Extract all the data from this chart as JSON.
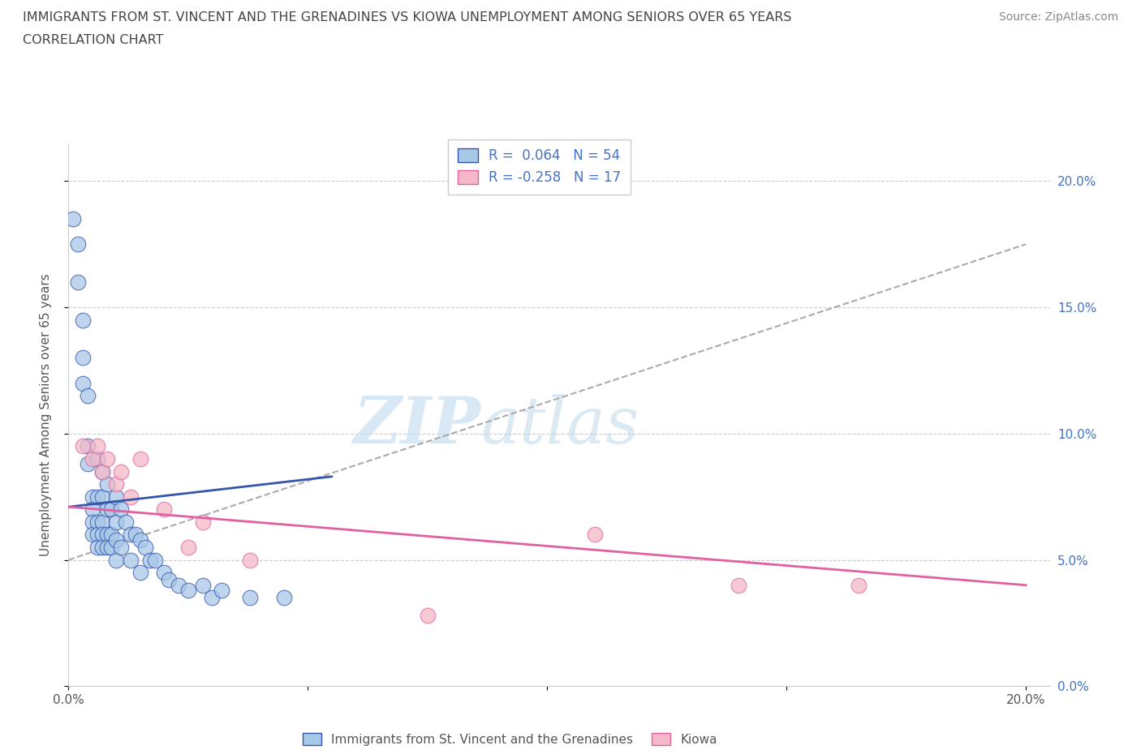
{
  "title_line1": "IMMIGRANTS FROM ST. VINCENT AND THE GRENADINES VS KIOWA UNEMPLOYMENT AMONG SENIORS OVER 65 YEARS",
  "title_line2": "CORRELATION CHART",
  "source_text": "Source: ZipAtlas.com",
  "ylabel": "Unemployment Among Seniors over 65 years",
  "watermark_zip": "ZIP",
  "watermark_atlas": "atlas",
  "xlim": [
    0.0,
    0.205
  ],
  "ylim": [
    0.0,
    0.215
  ],
  "yticks": [
    0.0,
    0.05,
    0.1,
    0.15,
    0.2
  ],
  "ytick_labels": [
    "0.0%",
    "5.0%",
    "10.0%",
    "15.0%",
    "20.0%"
  ],
  "xticks": [
    0.0,
    0.05,
    0.1,
    0.15,
    0.2
  ],
  "xtick_labels": [
    "0.0%",
    "",
    "",
    "",
    "20.0%"
  ],
  "color_blue": "#a8c8e8",
  "color_pink": "#f4b8c8",
  "trendline_blue_color": "#3355aa",
  "trendline_pink_color": "#e060a0",
  "trendline_gray_color": "#aaaaaa",
  "legend_label_blue": "Immigrants from St. Vincent and the Grenadines",
  "legend_label_pink": "Kiowa",
  "blue_scatter_x": [
    0.001,
    0.002,
    0.002,
    0.003,
    0.003,
    0.003,
    0.004,
    0.004,
    0.004,
    0.005,
    0.005,
    0.005,
    0.005,
    0.006,
    0.006,
    0.006,
    0.006,
    0.006,
    0.007,
    0.007,
    0.007,
    0.007,
    0.007,
    0.008,
    0.008,
    0.008,
    0.008,
    0.009,
    0.009,
    0.009,
    0.01,
    0.01,
    0.01,
    0.01,
    0.011,
    0.011,
    0.012,
    0.013,
    0.013,
    0.014,
    0.015,
    0.015,
    0.016,
    0.017,
    0.018,
    0.02,
    0.021,
    0.023,
    0.025,
    0.028,
    0.03,
    0.032,
    0.038,
    0.045
  ],
  "blue_scatter_y": [
    0.185,
    0.175,
    0.16,
    0.145,
    0.13,
    0.12,
    0.115,
    0.095,
    0.088,
    0.075,
    0.07,
    0.065,
    0.06,
    0.09,
    0.075,
    0.065,
    0.06,
    0.055,
    0.085,
    0.075,
    0.065,
    0.06,
    0.055,
    0.08,
    0.07,
    0.06,
    0.055,
    0.07,
    0.06,
    0.055,
    0.075,
    0.065,
    0.058,
    0.05,
    0.07,
    0.055,
    0.065,
    0.06,
    0.05,
    0.06,
    0.058,
    0.045,
    0.055,
    0.05,
    0.05,
    0.045,
    0.042,
    0.04,
    0.038,
    0.04,
    0.035,
    0.038,
    0.035,
    0.035
  ],
  "pink_scatter_x": [
    0.003,
    0.005,
    0.006,
    0.007,
    0.008,
    0.01,
    0.011,
    0.013,
    0.015,
    0.02,
    0.025,
    0.028,
    0.038,
    0.075,
    0.11,
    0.14,
    0.165
  ],
  "pink_scatter_y": [
    0.095,
    0.09,
    0.095,
    0.085,
    0.09,
    0.08,
    0.085,
    0.075,
    0.09,
    0.07,
    0.055,
    0.065,
    0.05,
    0.028,
    0.06,
    0.04,
    0.04
  ],
  "blue_trend_x0": 0.0,
  "blue_trend_x1": 0.055,
  "blue_trend_y0": 0.071,
  "blue_trend_y1": 0.083,
  "pink_trend_x0": 0.0,
  "pink_trend_x1": 0.2,
  "pink_trend_y0": 0.071,
  "pink_trend_y1": 0.04,
  "gray_trend_x0": 0.0,
  "gray_trend_x1": 0.2,
  "gray_trend_y0": 0.05,
  "gray_trend_y1": 0.175
}
